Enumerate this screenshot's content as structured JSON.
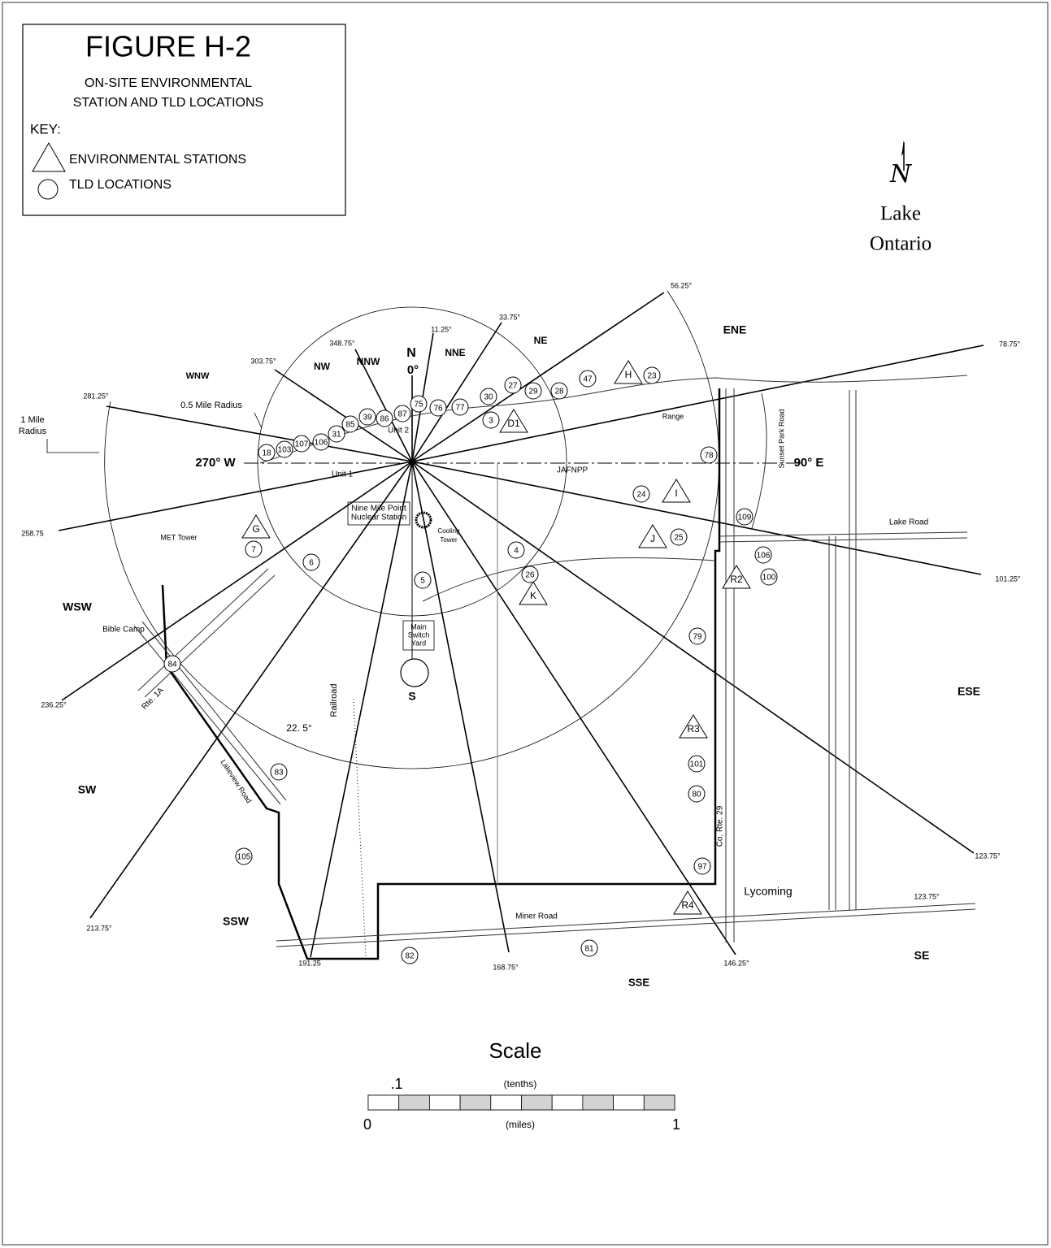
{
  "header": {
    "title": "FIGURE H-2",
    "subtitle_lines": [
      "ON-SITE ENVIRONMENTAL",
      "STATION AND TLD LOCATIONS"
    ],
    "key_label": "KEY:",
    "key_items": [
      "ENVIRONMENTAL STATIONS",
      "TLD LOCATIONS"
    ]
  },
  "north": {
    "symbol": "N",
    "water_body_lines": [
      "Lake",
      "Ontario"
    ]
  },
  "sectors": [
    "WNW",
    "NW",
    "NNW",
    "N",
    "NNE",
    "NE",
    "ENE",
    "WSW",
    "ESE",
    "SW",
    "SSW",
    "SSE",
    "SE",
    "S"
  ],
  "bearings": [
    "56.25°",
    "33.75°",
    "11.25°",
    "348.75°",
    "303.75°",
    "281.25°",
    "78.75°",
    "258.75",
    "101.25°",
    "236.25°",
    "123.75°",
    "213.75°",
    "191.25",
    "168.75°",
    "146.25°",
    "123.75°"
  ],
  "axis_labels": [
    "0°",
    "270° W",
    "90° E"
  ],
  "radius_labels": [
    "0.5 Mile Radius",
    "1 Mile",
    "Radius"
  ],
  "places": [
    "Range",
    "Sunset Park Road",
    "Lake Road",
    "MET Tower",
    "Cooling",
    "Tower",
    "Nine Mile Point",
    "Nuclear Station",
    "Main",
    "Switch",
    "Yard",
    "Unit 1",
    "Unit 2",
    "JAFNPP",
    "Bible Camp",
    "Rte. 1A",
    "Lakeview Road",
    "Railroad",
    "22. 5°",
    "Co. Rte. 29",
    "Lycoming",
    "Miner Road"
  ],
  "stations": [
    "H",
    "D1",
    "I",
    "J",
    "G",
    "K",
    "R2",
    "R3",
    "R4"
  ],
  "tlds": [
    "23",
    "47",
    "28",
    "29",
    "27",
    "30",
    "77",
    "76",
    "75",
    "87",
    "86",
    "39",
    "85",
    "31",
    "106",
    "107",
    "103",
    "18",
    "78",
    "24",
    "25",
    "109",
    "106",
    "100",
    "3",
    "4",
    "5",
    "6",
    "7",
    "26",
    "79",
    "84",
    "83",
    "101",
    "80",
    "97",
    "105",
    "82",
    "81"
  ],
  "scale": {
    "title": "Scale",
    "tenth": ".1",
    "tenths_unit": "(tenths)",
    "zero": "0",
    "miles_unit": "(miles)",
    "one": "1"
  }
}
